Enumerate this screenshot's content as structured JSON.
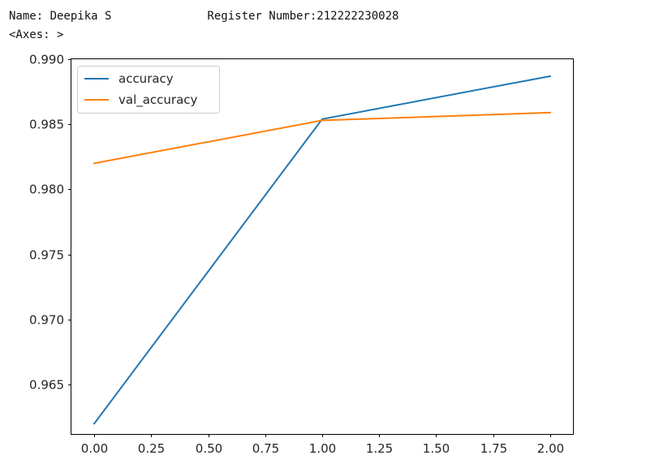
{
  "console": {
    "name_line": "Name: Deepika S              Register Number:212222230028",
    "axes_repr": "<Axes: >"
  },
  "chart_data": {
    "type": "line",
    "title": "",
    "xlabel": "",
    "ylabel": "",
    "xlim": [
      -0.1,
      2.1
    ],
    "ylim": [
      0.9612,
      0.99
    ],
    "x_ticks": [
      0.0,
      0.25,
      0.5,
      0.75,
      1.0,
      1.25,
      1.5,
      1.75,
      2.0
    ],
    "x_tick_labels": [
      "0.00",
      "0.25",
      "0.50",
      "0.75",
      "1.00",
      "1.25",
      "1.50",
      "1.75",
      "2.00"
    ],
    "y_ticks": [
      0.965,
      0.97,
      0.975,
      0.98,
      0.985,
      0.99
    ],
    "y_tick_labels": [
      "0.965",
      "0.970",
      "0.975",
      "0.980",
      "0.985",
      "0.990"
    ],
    "grid": false,
    "legend": "top-left",
    "series": [
      {
        "name": "accuracy",
        "color": "#1f77b4",
        "x": [
          0,
          1,
          2
        ],
        "y": [
          0.962,
          0.9854,
          0.9887
        ]
      },
      {
        "name": "val_accuracy",
        "color": "#ff7f0e",
        "x": [
          0,
          1,
          2
        ],
        "y": [
          0.982,
          0.9853,
          0.9859
        ]
      }
    ]
  }
}
